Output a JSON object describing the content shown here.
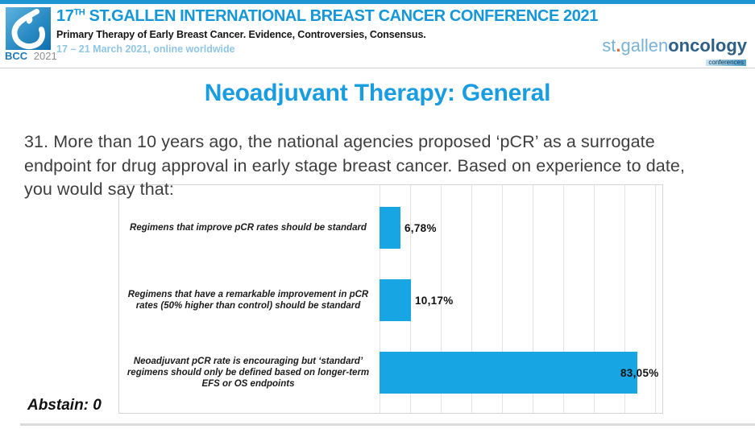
{
  "colors": {
    "accent_blue": "#1a9ce0",
    "header_blue": "#1697d7",
    "bar_blue": "#17a5e4",
    "top_strip": "#1f96d3",
    "dates_blue": "#8fc6e4"
  },
  "header": {
    "logo": {
      "icon": "bcc-drop-logo",
      "caption_bcc": "BCC",
      "caption_year": "2021"
    },
    "title_num": "17",
    "title_sup": "TH",
    "title_rest": " ST.GALLEN INTERNATIONAL BREAST CANCER CONFERENCE 2021",
    "subtitle": "Primary Therapy of Early Breast Cancer. Evidence, Controversies, Consensus.",
    "dates": "17 – 21 March 2021, online worldwide",
    "brand": {
      "part1": "st",
      "dot": ".",
      "part2": "gallen",
      "part3": "oncology",
      "badge": "conferences"
    }
  },
  "slide": {
    "title": "Neoadjuvant Therapy: General",
    "question": "31. More than 10 years ago, the national agencies proposed ‘pCR’ as a surrogate endpoint for drug approval in early stage breast cancer. Based on experience to date, you would say that:",
    "abstain": "Abstain: 0"
  },
  "chart_data": {
    "type": "bar",
    "orientation": "horizontal",
    "title": "",
    "categories": [
      "Regimens that improve pCR rates should be standard",
      "Regimens that have a remarkable improvement in pCR rates (50% higher than control) should be standard",
      "Neoadjuvant pCR rate is encouraging but ‘standard’ regimens should only be defined based on longer-term EFS or OS endpoints"
    ],
    "values": [
      6.78,
      10.17,
      83.05
    ],
    "value_labels": [
      "6,78%",
      "10,17%",
      "83,05%"
    ],
    "xlim": [
      0,
      100
    ],
    "gridline_interval_pct": 10,
    "grid": true,
    "legend": "none",
    "bar_color": "#17a5e4",
    "abstain": 0
  }
}
